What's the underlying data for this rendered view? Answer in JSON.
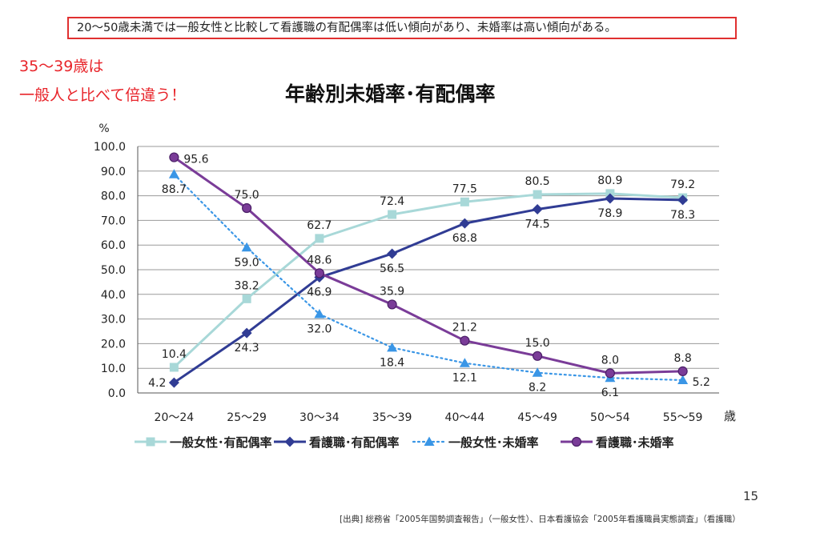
{
  "summary": "20～50歳未満では一般女性と比較して看護職の有配偶率は低い傾向があり、未婚率は高い傾向がある。",
  "annotation": {
    "line1": "35～39歳は",
    "line2": "一般人と比べて倍違う！"
  },
  "page_number": "15",
  "source": "[出典] 総務省「2005年国勢調査報告」（一般女性）、日本看護協会「2005年看護職員実態調査」（看護職）",
  "colors": {
    "accent_red": "#e8242a",
    "gridline": "#9a9a9a"
  },
  "chart_data": {
    "type": "line",
    "title": "年齢別未婚率･有配偶率",
    "ylabel": "%",
    "xlabel": "歳",
    "ylim": [
      0,
      100
    ],
    "yticks": [
      "0.0",
      "10.0",
      "20.0",
      "30.0",
      "40.0",
      "50.0",
      "60.0",
      "70.0",
      "80.0",
      "90.0",
      "100.0"
    ],
    "grid": true,
    "legend_position": "bottom",
    "categories": [
      "20～24",
      "25～29",
      "30～34",
      "35～39",
      "40～44",
      "45～49",
      "50～54",
      "55～59"
    ],
    "series": [
      {
        "name": "一般女性･有配偶率",
        "color": "#a8d8d8",
        "marker": "square",
        "style": "solid",
        "values": [
          10.4,
          38.2,
          62.7,
          72.4,
          77.5,
          80.5,
          80.9,
          79.2
        ],
        "labels": [
          "10.4",
          "38.2",
          "62.7",
          "72.4",
          "77.5",
          "80.5",
          "80.9",
          "79.2"
        ],
        "label_pos": [
          "above",
          "above",
          "above",
          "above",
          "above",
          "above",
          "above",
          "above"
        ]
      },
      {
        "name": "看護職･有配偶率",
        "color": "#303c94",
        "marker": "diamond",
        "style": "solid",
        "values": [
          4.2,
          24.3,
          46.9,
          56.5,
          68.8,
          74.5,
          78.9,
          78.3
        ],
        "labels": [
          "4.2",
          "24.3",
          "46.9",
          "56.5",
          "68.8",
          "74.5",
          "78.9",
          "78.3"
        ],
        "label_pos": [
          "left",
          "below",
          "below",
          "below",
          "below",
          "below",
          "below",
          "below"
        ]
      },
      {
        "name": "一般女性･未婚率",
        "color": "#3a96e6",
        "marker": "triangle",
        "style": "dotted",
        "values": [
          88.7,
          59.0,
          32.0,
          18.4,
          12.1,
          8.2,
          6.1,
          5.2
        ],
        "labels": [
          "88.7",
          "59.0",
          "32.0",
          "18.4",
          "12.1",
          "8.2",
          "6.1",
          "5.2"
        ],
        "label_pos": [
          "below",
          "below",
          "below",
          "below",
          "below",
          "below",
          "below",
          "right"
        ]
      },
      {
        "name": "看護職･未婚率",
        "color": "#7a3c98",
        "marker": "circle",
        "style": "solid",
        "values": [
          95.6,
          75.0,
          48.6,
          35.9,
          21.2,
          15.0,
          8.0,
          8.8
        ],
        "labels": [
          "95.6",
          "75.0",
          "48.6",
          "35.9",
          "21.2",
          "15.0",
          "8.0",
          "8.8"
        ],
        "label_pos": [
          "right",
          "above",
          "above",
          "above",
          "above",
          "above",
          "above",
          "above"
        ]
      }
    ]
  }
}
